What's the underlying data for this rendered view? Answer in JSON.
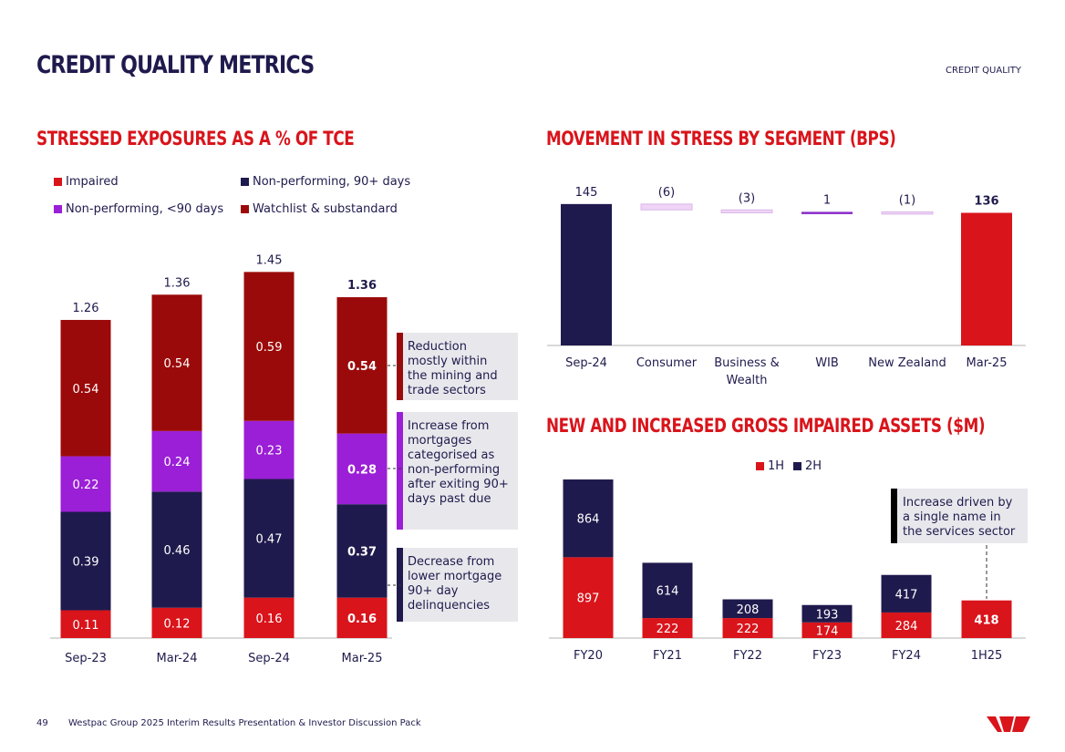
{
  "header": {
    "title": "CREDIT QUALITY METRICS",
    "section": "CREDIT QUALITY"
  },
  "colors": {
    "impaired": "#d9141b",
    "np90": "#1f1a4d",
    "np_lt90": "#9b1fd6",
    "watchlist": "#9b0a0a",
    "decrease": "#f0d4f7",
    "increase": "#8a2bc9",
    "axis": "#b0b0b0"
  },
  "notes": [
    {
      "text": "Reduction mostly within the mining and trade sectors",
      "color": "#9b0a0a"
    },
    {
      "text": "Increase from mortgages categorised as non-performing after exiting 90+ days past due",
      "color": "#9b1fd6"
    },
    {
      "text": "Decrease from lower mortgage 90+ day delinquencies",
      "color": "#1f1a4d"
    },
    {
      "text": "Increase driven by a single name in the services sector",
      "color": "#000000"
    }
  ],
  "footer": {
    "page": "49",
    "text": "Westpac Group 2025 Interim Results Presentation & Investor Discussion Pack"
  },
  "chart_data": [
    {
      "type": "bar",
      "stacked": true,
      "title": "STRESSED EXPOSURES AS A % OF TCE",
      "categories": [
        "Sep-23",
        "Mar-24",
        "Sep-24",
        "Mar-25"
      ],
      "series": [
        {
          "name": "Impaired",
          "values": [
            0.11,
            0.12,
            0.16,
            0.16
          ]
        },
        {
          "name": "Non-performing, 90+ days",
          "values": [
            0.39,
            0.46,
            0.47,
            0.37
          ]
        },
        {
          "name": "Non-performing, <90 days",
          "values": [
            0.22,
            0.24,
            0.23,
            0.28
          ]
        },
        {
          "name": "Watchlist & substandard",
          "values": [
            0.54,
            0.54,
            0.59,
            0.54
          ]
        }
      ],
      "totals": [
        "1.26",
        "1.36",
        "1.45",
        "1.36"
      ],
      "legend": "top",
      "grid": false
    },
    {
      "type": "bar",
      "subtype": "waterfall",
      "title": "MOVEMENT IN STRESS BY SEGMENT (BPS)",
      "categories": [
        "Sep-24",
        "Consumer",
        "Business & Wealth",
        "WIB",
        "New Zealand",
        "Mar-25"
      ],
      "values": [
        145,
        -6,
        -3,
        1,
        -1,
        136
      ],
      "labels": [
        "145",
        "(6)",
        "(3)",
        "1",
        "(1)",
        "136"
      ],
      "grid": false
    },
    {
      "type": "bar",
      "stacked": true,
      "title": "NEW AND INCREASED GROSS IMPAIRED ASSETS ($M)",
      "categories": [
        "FY20",
        "FY21",
        "FY22",
        "FY23",
        "FY24",
        "1H25"
      ],
      "series": [
        {
          "name": "1H",
          "values": [
            897,
            222,
            222,
            174,
            284,
            418
          ]
        },
        {
          "name": "2H",
          "values": [
            864,
            614,
            208,
            193,
            417,
            null
          ]
        }
      ],
      "legend": "top",
      "grid": false
    }
  ]
}
